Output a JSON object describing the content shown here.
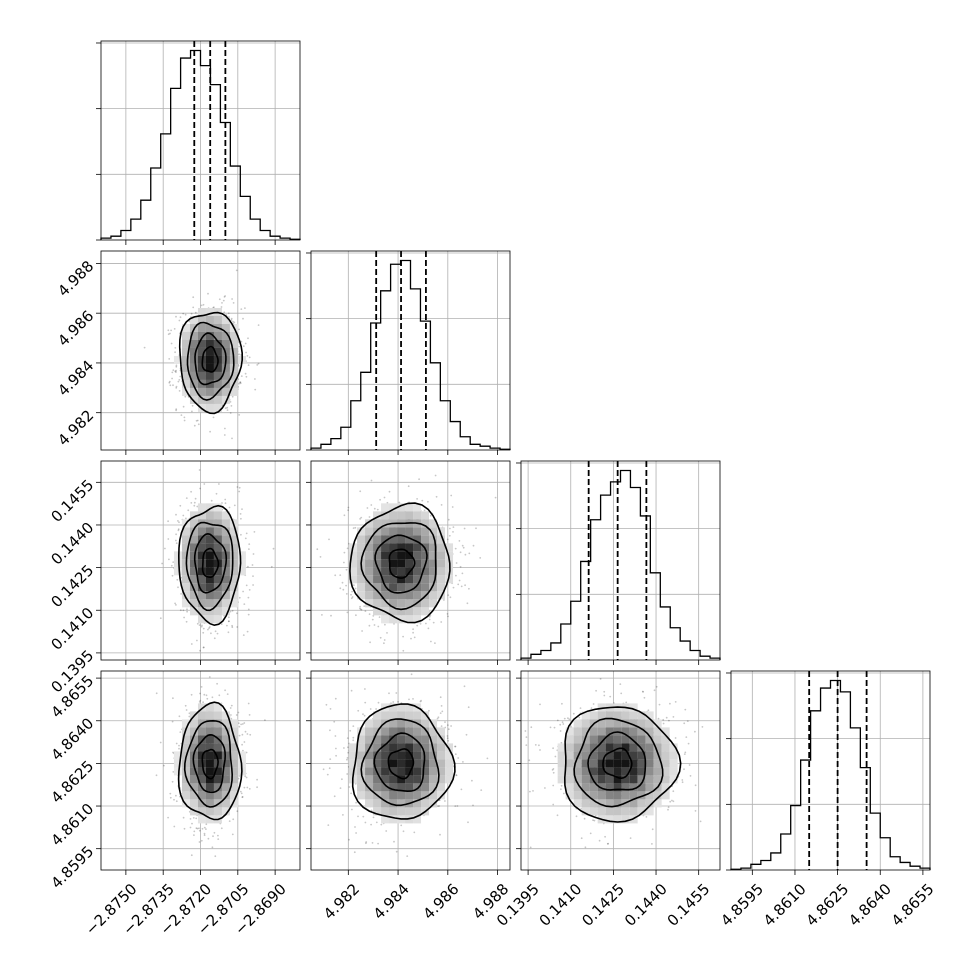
{
  "chart_data": {
    "type": "corner",
    "title": "",
    "grid": true,
    "parameters": [
      {
        "range": [
          -2.876,
          -2.868
        ],
        "ticks": [
          -2.875,
          -2.8735,
          -2.872,
          -2.8705,
          -2.869
        ],
        "tick_labels": [
          "−2.8750",
          "−2.8735",
          "−2.8720",
          "−2.8705",
          "−2.8690"
        ],
        "quantiles": [
          -2.87225,
          -2.87161,
          -2.871
        ],
        "hist": [
          0.01,
          0.02,
          0.05,
          0.11,
          0.21,
          0.38,
          0.56,
          0.8,
          0.96,
          1.0,
          0.92,
          0.82,
          0.62,
          0.39,
          0.23,
          0.11,
          0.05,
          0.02,
          0.01,
          0.004
        ]
      },
      {
        "range": [
          4.9805,
          4.9885
        ],
        "ticks": [
          4.982,
          4.984,
          4.986,
          4.988
        ],
        "tick_labels": [
          "4.982",
          "4.984",
          "4.986",
          "4.988"
        ],
        "quantiles": [
          4.98312,
          4.98412,
          4.98512
        ],
        "hist": [
          0.01,
          0.03,
          0.06,
          0.12,
          0.26,
          0.41,
          0.67,
          0.84,
          0.98,
          1.0,
          0.85,
          0.68,
          0.46,
          0.26,
          0.15,
          0.07,
          0.03,
          0.02,
          0.01,
          0.004
        ]
      },
      {
        "range": [
          0.13925,
          0.14625
        ],
        "ticks": [
          0.1395,
          0.141,
          0.1425,
          0.144,
          0.1455
        ],
        "tick_labels": [
          "0.1395",
          "0.1410",
          "0.1425",
          "0.1440",
          "0.1455"
        ],
        "quantiles": [
          0.14163,
          0.14265,
          0.14366
        ],
        "hist": [
          0.01,
          0.03,
          0.05,
          0.09,
          0.19,
          0.31,
          0.52,
          0.74,
          0.87,
          0.94,
          1.0,
          0.91,
          0.76,
          0.46,
          0.28,
          0.17,
          0.1,
          0.05,
          0.02,
          0.01
        ]
      },
      {
        "range": [
          4.85875,
          4.86575
        ],
        "ticks": [
          4.8595,
          4.861,
          4.8625,
          4.864,
          4.8655
        ],
        "tick_labels": [
          "4.8595",
          "4.8610",
          "4.8625",
          "4.8640",
          "4.8655"
        ],
        "quantiles": [
          4.8615,
          4.8625,
          4.86352
        ],
        "hist": [
          0.004,
          0.01,
          0.03,
          0.05,
          0.09,
          0.19,
          0.34,
          0.58,
          0.84,
          0.96,
          1.0,
          0.94,
          0.75,
          0.54,
          0.3,
          0.17,
          0.07,
          0.04,
          0.02,
          0.01
        ]
      }
    ],
    "pairs": [
      {
        "x": 0,
        "y": 1,
        "mean": [
          -2.87162,
          4.98412
        ],
        "std": [
          0.00062,
          0.001
        ]
      },
      {
        "x": 0,
        "y": 2,
        "mean": [
          -2.87162,
          0.14265
        ],
        "std": [
          0.00062,
          0.00101
        ]
      },
      {
        "x": 1,
        "y": 2,
        "mean": [
          4.98412,
          0.14265
        ],
        "std": [
          0.001,
          0.00101
        ]
      },
      {
        "x": 0,
        "y": 3,
        "mean": [
          -2.87162,
          4.8625
        ],
        "std": [
          0.00062,
          0.00101
        ]
      },
      {
        "x": 1,
        "y": 3,
        "mean": [
          4.98412,
          4.8625
        ],
        "std": [
          0.001,
          0.00101
        ]
      },
      {
        "x": 2,
        "y": 3,
        "mean": [
          0.14265,
          4.8625
        ],
        "std": [
          0.00101,
          0.00101
        ]
      }
    ],
    "contour_levels_sigma": [
      0.5,
      1.0,
      1.5,
      2.0
    ]
  }
}
